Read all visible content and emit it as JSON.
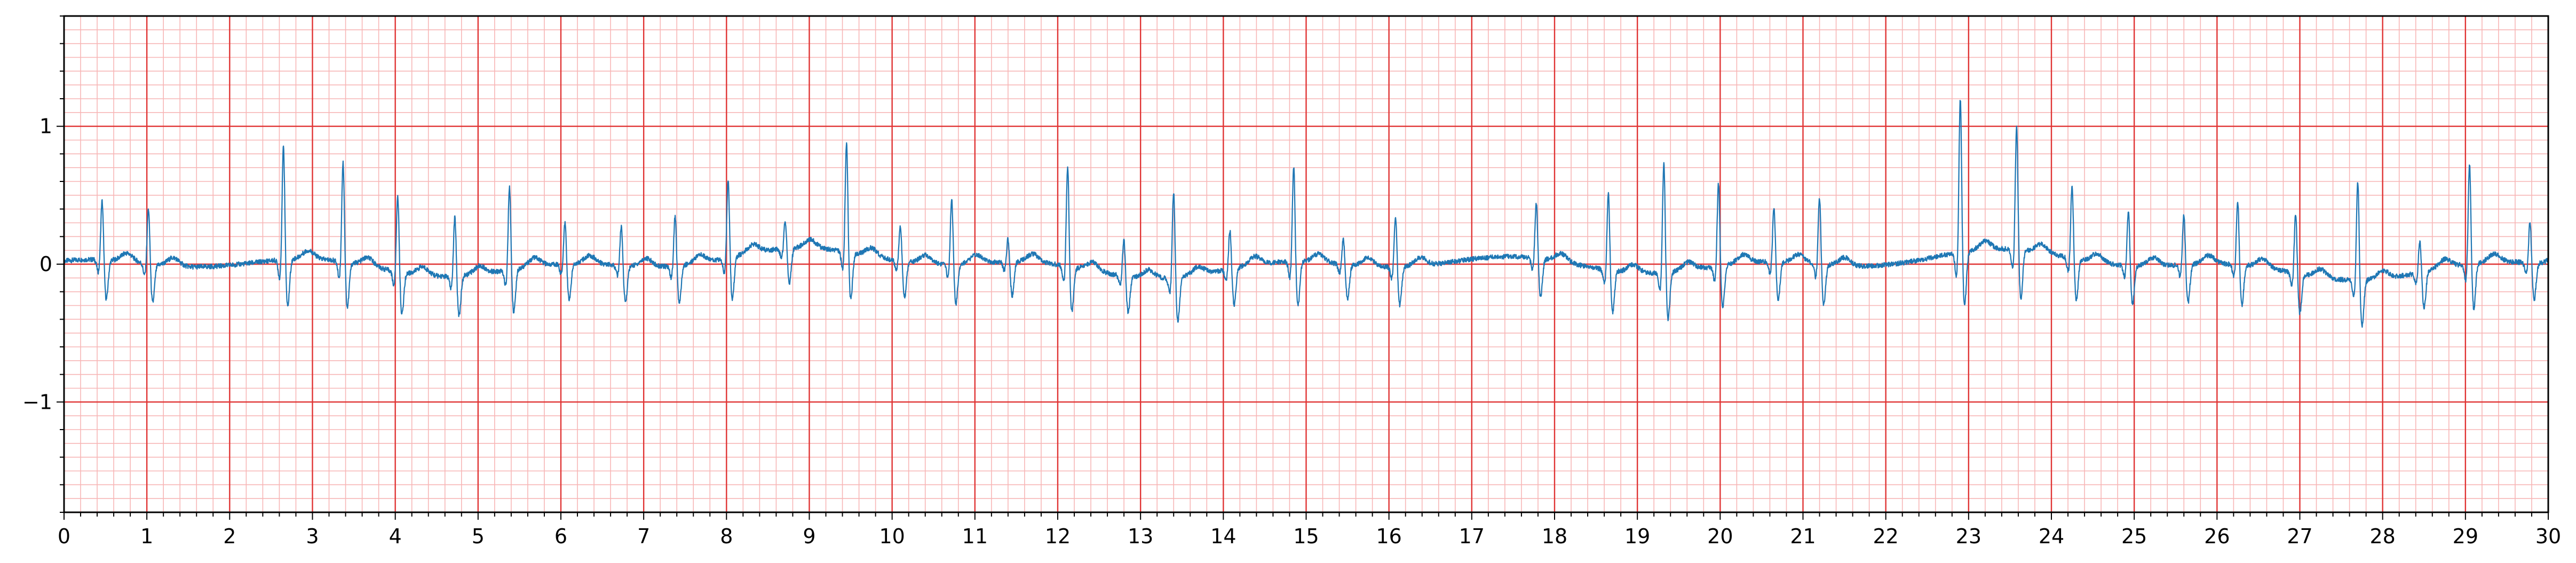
{
  "chart_data": {
    "type": "line",
    "title": "",
    "xlabel": "",
    "ylabel": "",
    "xlim": [
      0,
      30
    ],
    "ylim": [
      -1.8,
      1.8
    ],
    "grid": true,
    "x_ticks": [
      0,
      1,
      2,
      3,
      4,
      5,
      6,
      7,
      8,
      9,
      10,
      11,
      12,
      13,
      14,
      15,
      16,
      17,
      18,
      19,
      20,
      21,
      22,
      23,
      24,
      25,
      26,
      27,
      28,
      29,
      30
    ],
    "x_tick_labels": [
      "0",
      "1",
      "2",
      "3",
      "4",
      "5",
      "6",
      "7",
      "8",
      "9",
      "10",
      "11",
      "12",
      "13",
      "14",
      "15",
      "16",
      "17",
      "18",
      "19",
      "20",
      "21",
      "22",
      "23",
      "24",
      "25",
      "26",
      "27",
      "28",
      "29",
      "30"
    ],
    "y_ticks": [
      -1,
      0,
      1
    ],
    "y_tick_labels": [
      "−1",
      "0",
      "1"
    ],
    "series": [
      {
        "beats": [
          {
            "t": 0.46,
            "amp": 0.45
          },
          {
            "t": 1.02,
            "amp": 0.42
          },
          {
            "t": 2.65,
            "amp": 0.85
          },
          {
            "t": 3.37,
            "amp": 0.75
          },
          {
            "t": 4.03,
            "amp": 0.58
          },
          {
            "t": 4.72,
            "amp": 0.45
          },
          {
            "t": 5.38,
            "amp": 0.62
          },
          {
            "t": 6.05,
            "amp": 0.32
          },
          {
            "t": 6.73,
            "amp": 0.3
          },
          {
            "t": 7.38,
            "amp": 0.38
          },
          {
            "t": 8.02,
            "amp": 0.6
          },
          {
            "t": 8.71,
            "amp": 0.22
          },
          {
            "t": 9.45,
            "amp": 0.82
          },
          {
            "t": 10.1,
            "amp": 0.28
          },
          {
            "t": 10.72,
            "amp": 0.5
          },
          {
            "t": 11.4,
            "amp": 0.18
          },
          {
            "t": 12.12,
            "amp": 0.75
          },
          {
            "t": 12.8,
            "amp": 0.28
          },
          {
            "t": 13.4,
            "amp": 0.65
          },
          {
            "t": 14.08,
            "amp": 0.3
          },
          {
            "t": 14.85,
            "amp": 0.72
          },
          {
            "t": 15.45,
            "amp": 0.2
          },
          {
            "t": 16.08,
            "amp": 0.38
          },
          {
            "t": 17.78,
            "amp": 0.42
          },
          {
            "t": 18.65,
            "amp": 0.58
          },
          {
            "t": 19.32,
            "amp": 0.82
          },
          {
            "t": 19.98,
            "amp": 0.62
          },
          {
            "t": 20.65,
            "amp": 0.42
          },
          {
            "t": 21.2,
            "amp": 0.5
          },
          {
            "t": 22.9,
            "amp": 1.15
          },
          {
            "t": 23.58,
            "amp": 0.92
          },
          {
            "t": 24.25,
            "amp": 0.55
          },
          {
            "t": 24.93,
            "amp": 0.42
          },
          {
            "t": 25.6,
            "amp": 0.38
          },
          {
            "t": 26.25,
            "amp": 0.48
          },
          {
            "t": 26.95,
            "amp": 0.45
          },
          {
            "t": 27.7,
            "amp": 0.75
          },
          {
            "t": 28.45,
            "amp": 0.25
          },
          {
            "t": 29.05,
            "amp": 0.75
          },
          {
            "t": 29.78,
            "amp": 0.32
          }
        ],
        "color": "#1f77b4"
      }
    ],
    "grid_major_color": "#e03434",
    "grid_minor_color": "#f7b6b6"
  }
}
